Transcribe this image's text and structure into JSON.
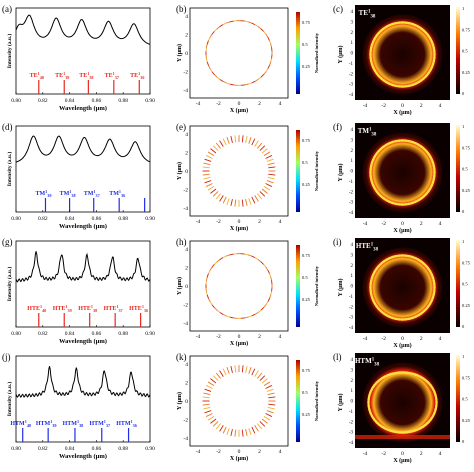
{
  "rows": [
    {
      "spectrum": {
        "label": "(a)",
        "ylabel": "Intensity (a.u.)",
        "xlabel": "Wavelength (µm)",
        "xlim": [
          0.8,
          0.9
        ],
        "xticks": [
          "0.80",
          "0.82",
          "0.84",
          "0.86",
          "0.88",
          "0.90"
        ],
        "mode_color": "#e8281e",
        "peaks_x": [
          0.81,
          0.83,
          0.849,
          0.869,
          0.888
        ],
        "mode_lines_x": [
          0.817,
          0.836,
          0.854,
          0.873,
          0.892
        ],
        "mode_labels": [
          {
            "pre": "TE",
            "sup": "1",
            "sub": "40"
          },
          {
            "pre": "TE",
            "sup": "1",
            "sub": "39"
          },
          {
            "pre": "TE",
            "sup": "1",
            "sub": "38"
          },
          {
            "pre": "TE",
            "sup": "1",
            "sub": "37"
          },
          {
            "pre": "TE",
            "sup": "1",
            "sub": "36"
          }
        ]
      },
      "vector": {
        "label": "(b)",
        "xlabel": "X (µm)",
        "ylabel": "Y (µm)",
        "cbar_title": "Normalized intensity",
        "cbar_ticks": [
          "0.75",
          "0.5",
          "0.25"
        ],
        "pattern": "tangential"
      },
      "field": {
        "label": "(c)",
        "mode": {
          "pre": "TE",
          "sup": "1",
          "sub": "38"
        },
        "xlabel": "X (µm)",
        "ylabel": "Y (µm)",
        "cbar_ticks": [
          "1",
          "0.75",
          "0.5",
          "0.25",
          "0"
        ]
      }
    },
    {
      "spectrum": {
        "label": "(d)",
        "ylabel": "Intensity (a.u.)",
        "xlabel": "Wavelength (µm)",
        "xlim": [
          0.8,
          0.9
        ],
        "xticks": [
          "0.80",
          "0.82",
          "0.84",
          "0.86",
          "0.88",
          "0.90"
        ],
        "mode_color": "#1e2ee8",
        "peaks_x": [
          0.813,
          0.832,
          0.851,
          0.87,
          0.889
        ],
        "mode_lines_x": [
          0.822,
          0.84,
          0.858,
          0.877,
          0.896
        ],
        "mode_labels": [
          {
            "pre": "TM",
            "sup": "1",
            "sub": "39"
          },
          {
            "pre": "TM",
            "sup": "1",
            "sub": "38"
          },
          {
            "pre": "TM",
            "sup": "1",
            "sub": "37"
          },
          {
            "pre": "TM",
            "sup": "1",
            "sub": "36"
          }
        ]
      },
      "vector": {
        "label": "(e)",
        "xlabel": "X (µm)",
        "ylabel": "Y (µm)",
        "cbar_title": "Normalized intensity",
        "cbar_ticks": [
          "0.75",
          "0.5",
          "0.25"
        ],
        "pattern": "radial"
      },
      "field": {
        "label": "(f)",
        "mode": {
          "pre": "TM",
          "sup": "1",
          "sub": "38"
        },
        "xlabel": "X (µm)",
        "ylabel": "Y (µm)",
        "cbar_ticks": [
          "1",
          "0.75",
          "0.5",
          "0.25",
          "0"
        ]
      }
    },
    {
      "spectrum": {
        "label": "(g)",
        "ylabel": "Intensity (a.u.)",
        "xlabel": "Wavelength (µm)",
        "xlim": [
          0.8,
          0.9
        ],
        "xticks": [
          "0.80",
          "0.82",
          "0.84",
          "0.86",
          "0.88",
          "0.90"
        ],
        "mode_color": "#e8281e",
        "peaks_x": [
          0.815,
          0.834,
          0.853,
          0.872,
          0.891
        ],
        "mode_lines_x": [
          0.817,
          0.836,
          0.855,
          0.874,
          0.893
        ],
        "mode_labels": [
          {
            "pre": "HTE",
            "sup": "1",
            "sub": "40"
          },
          {
            "pre": "HTE",
            "sup": "1",
            "sub": "39"
          },
          {
            "pre": "HTE",
            "sup": "1",
            "sub": "38"
          },
          {
            "pre": "HTE",
            "sup": "1",
            "sub": "37"
          },
          {
            "pre": "HTE",
            "sup": "1",
            "sub": "36"
          }
        ]
      },
      "vector": {
        "label": "(h)",
        "xlabel": "X (µm)",
        "ylabel": "Y (µm)",
        "cbar_title": "Normalized intensity",
        "cbar_ticks": [
          "0.75",
          "0.5",
          "0.25"
        ],
        "pattern": "tangential"
      },
      "field": {
        "label": "(i)",
        "mode": {
          "pre": "HTE",
          "sup": "1",
          "sub": "38"
        },
        "xlabel": "X (µm)",
        "ylabel": "Y (µm)",
        "cbar_ticks": [
          "1",
          "0.75",
          "0.5",
          "0.25",
          "0"
        ]
      }
    },
    {
      "spectrum": {
        "label": "(j)",
        "ylabel": "Intensity (a.u.)",
        "xlabel": "Wavelength (µm)",
        "xlim": [
          0.8,
          0.9
        ],
        "xticks": [
          "0.80",
          "0.82",
          "0.84",
          "0.86",
          "0.88",
          "0.90"
        ],
        "mode_color": "#1e2ee8",
        "peaks_x": [
          0.825,
          0.845,
          0.866,
          0.886
        ],
        "mode_lines_x": [
          0.805,
          0.824,
          0.844,
          0.864,
          0.884
        ],
        "mode_labels": [
          {
            "pre": "HTM",
            "sup": "1",
            "sub": "40"
          },
          {
            "pre": "HTM",
            "sup": "1",
            "sub": "39"
          },
          {
            "pre": "HTM",
            "sup": "1",
            "sub": "38"
          },
          {
            "pre": "HTM",
            "sup": "1",
            "sub": "37"
          },
          {
            "pre": "HTM",
            "sup": "1",
            "sub": "36"
          }
        ]
      },
      "vector": {
        "label": "(k)",
        "xlabel": "X (µm)",
        "ylabel": "Y (µm)",
        "cbar_title": "Normalized intensity",
        "cbar_ticks": [
          "0.75",
          "0.5",
          "0.25"
        ],
        "pattern": "radial"
      },
      "field": {
        "label": "(l)",
        "mode": {
          "pre": "HTM",
          "sup": "1",
          "sub": "38"
        },
        "xlabel": "X (µm)",
        "ylabel": "Y (µm)",
        "cbar_ticks": [
          "1",
          "0.75",
          "0.5",
          "0.25",
          "0"
        ]
      }
    }
  ],
  "vector_axes": {
    "xticks": [
      "-4",
      "-2",
      "0",
      "2",
      "4"
    ],
    "yticks": [
      "4",
      "2",
      "0",
      "-2",
      "-4"
    ]
  },
  "field_axes": {
    "xticks": [
      "-4",
      "-2",
      "0",
      "2",
      "4"
    ],
    "yticks": [
      "4",
      "3",
      "2",
      "1",
      "0",
      "-1",
      "-2",
      "-3",
      "-4"
    ]
  },
  "colors": {
    "line": "#000000",
    "field_dark": "#0a0000",
    "field_mid": "#e8280a",
    "field_bright": "#ffe040"
  }
}
